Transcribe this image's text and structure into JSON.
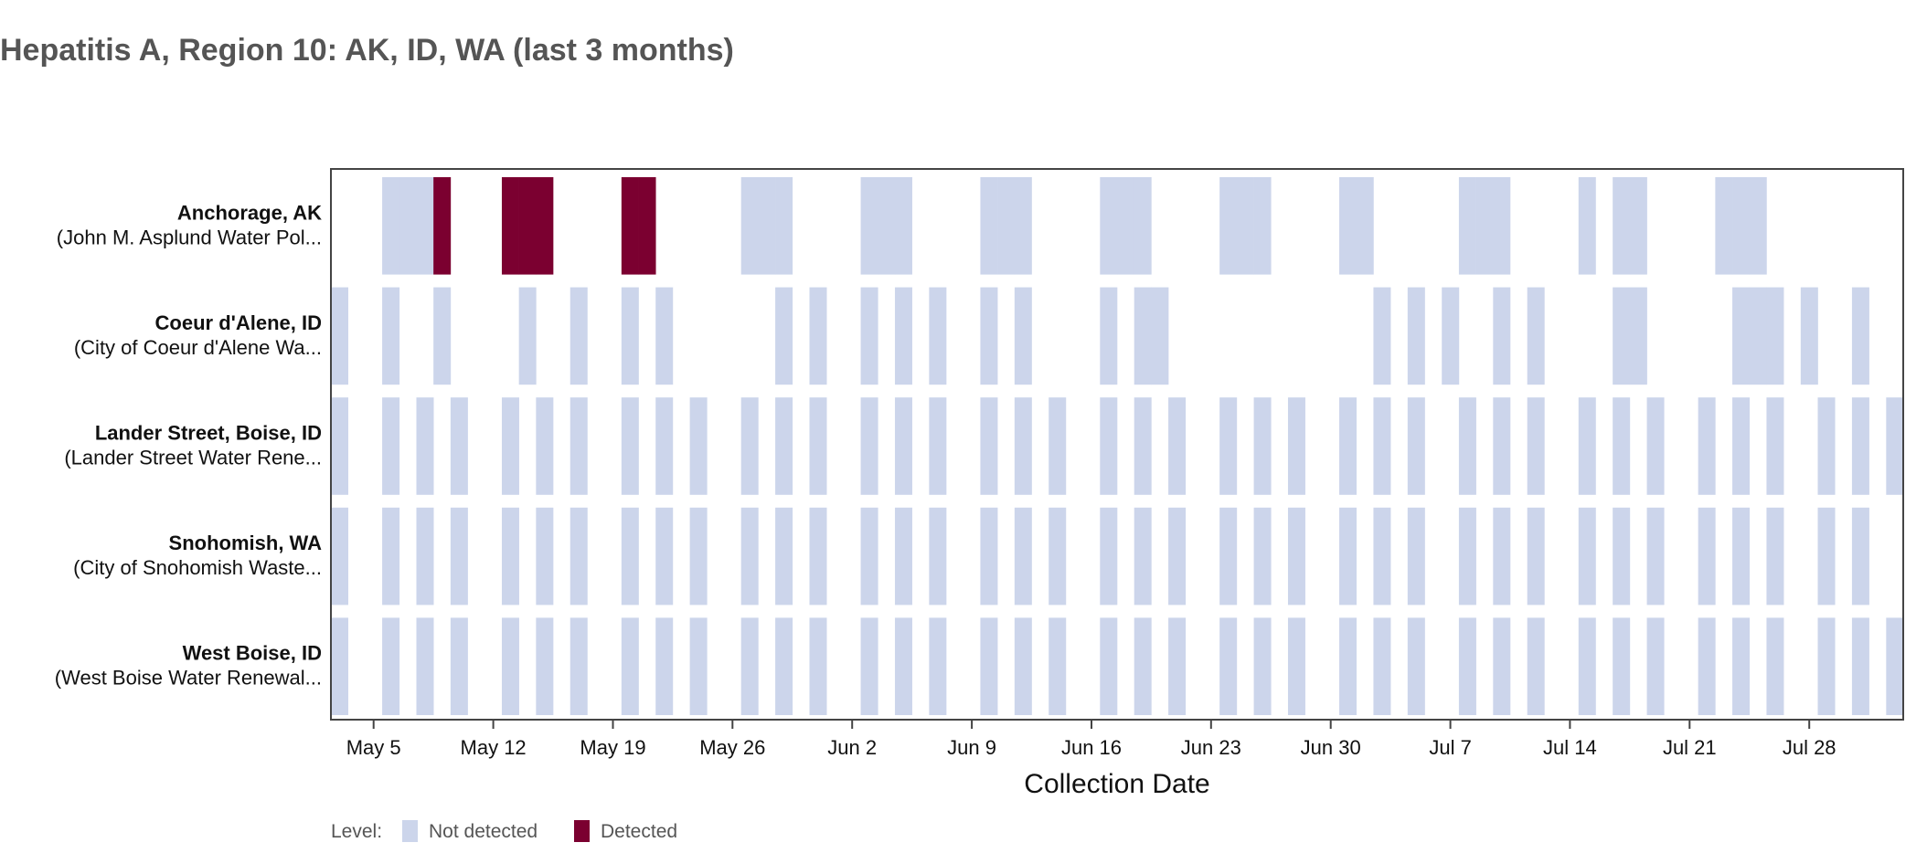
{
  "chart_data": {
    "type": "heatmap",
    "title": "Hepatitis A, Region 10: AK, ID, WA (last 3 months)",
    "xlabel": "Collection Date",
    "ylabel": "",
    "x_range": [
      "2025-05-03",
      "2025-08-02"
    ],
    "x_ticks": [
      {
        "date": "2025-05-05",
        "label": "May 5"
      },
      {
        "date": "2025-05-12",
        "label": "May 12"
      },
      {
        "date": "2025-05-19",
        "label": "May 19"
      },
      {
        "date": "2025-05-26",
        "label": "May 26"
      },
      {
        "date": "2025-06-02",
        "label": "Jun 2"
      },
      {
        "date": "2025-06-09",
        "label": "Jun 9"
      },
      {
        "date": "2025-06-16",
        "label": "Jun 16"
      },
      {
        "date": "2025-06-23",
        "label": "Jun 23"
      },
      {
        "date": "2025-06-30",
        "label": "Jun 30"
      },
      {
        "date": "2025-07-07",
        "label": "Jul 7"
      },
      {
        "date": "2025-07-14",
        "label": "Jul 14"
      },
      {
        "date": "2025-07-21",
        "label": "Jul 21"
      },
      {
        "date": "2025-07-28",
        "label": "Jul 28"
      }
    ],
    "legend": {
      "title": "Level:",
      "placement": "bottom-left",
      "items": [
        {
          "label": "Not detected",
          "color": "#ccd5eb"
        },
        {
          "label": "Detected",
          "color": "#7b0030"
        }
      ]
    },
    "sites": [
      {
        "name": "Anchorage, AK",
        "facility": "(John M. Asplund Water Pol...",
        "not_detected": [
          "2025-05-06",
          "2025-05-07",
          "2025-05-08",
          "2025-05-27",
          "2025-05-28",
          "2025-05-29",
          "2025-06-03",
          "2025-06-04",
          "2025-06-05",
          "2025-06-10",
          "2025-06-11",
          "2025-06-12",
          "2025-06-17",
          "2025-06-18",
          "2025-06-19",
          "2025-06-24",
          "2025-06-25",
          "2025-06-26",
          "2025-07-01",
          "2025-07-02",
          "2025-07-08",
          "2025-07-09",
          "2025-07-10",
          "2025-07-15",
          "2025-07-17",
          "2025-07-18",
          "2025-07-23",
          "2025-07-24",
          "2025-07-25"
        ],
        "detected": [
          "2025-05-09",
          "2025-05-13",
          "2025-05-14",
          "2025-05-15",
          "2025-05-20",
          "2025-05-21"
        ]
      },
      {
        "name": "Coeur d'Alene, ID",
        "facility": "(City of Coeur d'Alene Wa...",
        "not_detected": [
          "2025-05-03",
          "2025-05-06",
          "2025-05-09",
          "2025-05-14",
          "2025-05-17",
          "2025-05-20",
          "2025-05-22",
          "2025-05-29",
          "2025-05-31",
          "2025-06-03",
          "2025-06-05",
          "2025-06-07",
          "2025-06-10",
          "2025-06-12",
          "2025-06-17",
          "2025-06-19",
          "2025-06-20",
          "2025-07-03",
          "2025-07-05",
          "2025-07-07",
          "2025-07-10",
          "2025-07-12",
          "2025-07-17",
          "2025-07-18",
          "2025-07-24",
          "2025-07-25",
          "2025-07-26",
          "2025-07-28",
          "2025-07-31"
        ],
        "detected": []
      },
      {
        "name": "Lander Street, Boise, ID",
        "facility": "(Lander Street Water Rene...",
        "not_detected": [
          "2025-05-03",
          "2025-05-06",
          "2025-05-08",
          "2025-05-10",
          "2025-05-13",
          "2025-05-15",
          "2025-05-17",
          "2025-05-20",
          "2025-05-22",
          "2025-05-24",
          "2025-05-27",
          "2025-05-29",
          "2025-05-31",
          "2025-06-03",
          "2025-06-05",
          "2025-06-07",
          "2025-06-10",
          "2025-06-12",
          "2025-06-14",
          "2025-06-17",
          "2025-06-19",
          "2025-06-21",
          "2025-06-24",
          "2025-06-26",
          "2025-06-28",
          "2025-07-01",
          "2025-07-03",
          "2025-07-05",
          "2025-07-08",
          "2025-07-10",
          "2025-07-12",
          "2025-07-15",
          "2025-07-17",
          "2025-07-19",
          "2025-07-22",
          "2025-07-24",
          "2025-07-26",
          "2025-07-29",
          "2025-07-31",
          "2025-08-02"
        ],
        "detected": []
      },
      {
        "name": "Snohomish, WA",
        "facility": "(City of Snohomish Waste...",
        "not_detected": [
          "2025-05-03",
          "2025-05-06",
          "2025-05-08",
          "2025-05-10",
          "2025-05-13",
          "2025-05-15",
          "2025-05-17",
          "2025-05-20",
          "2025-05-22",
          "2025-05-24",
          "2025-05-27",
          "2025-05-29",
          "2025-05-31",
          "2025-06-03",
          "2025-06-05",
          "2025-06-07",
          "2025-06-10",
          "2025-06-12",
          "2025-06-14",
          "2025-06-17",
          "2025-06-19",
          "2025-06-21",
          "2025-06-24",
          "2025-06-26",
          "2025-06-28",
          "2025-07-01",
          "2025-07-03",
          "2025-07-05",
          "2025-07-08",
          "2025-07-10",
          "2025-07-12",
          "2025-07-15",
          "2025-07-17",
          "2025-07-19",
          "2025-07-22",
          "2025-07-24",
          "2025-07-26",
          "2025-07-29",
          "2025-07-31"
        ],
        "detected": []
      },
      {
        "name": "West Boise, ID",
        "facility": "(West Boise Water Renewal...",
        "not_detected": [
          "2025-05-03",
          "2025-05-06",
          "2025-05-08",
          "2025-05-10",
          "2025-05-13",
          "2025-05-15",
          "2025-05-17",
          "2025-05-20",
          "2025-05-22",
          "2025-05-24",
          "2025-05-27",
          "2025-05-29",
          "2025-05-31",
          "2025-06-03",
          "2025-06-05",
          "2025-06-07",
          "2025-06-10",
          "2025-06-12",
          "2025-06-14",
          "2025-06-17",
          "2025-06-19",
          "2025-06-21",
          "2025-06-24",
          "2025-06-26",
          "2025-06-28",
          "2025-07-01",
          "2025-07-03",
          "2025-07-05",
          "2025-07-08",
          "2025-07-10",
          "2025-07-12",
          "2025-07-15",
          "2025-07-17",
          "2025-07-19",
          "2025-07-22",
          "2025-07-24",
          "2025-07-26",
          "2025-07-29",
          "2025-07-31",
          "2025-08-02"
        ],
        "detected": []
      }
    ]
  }
}
